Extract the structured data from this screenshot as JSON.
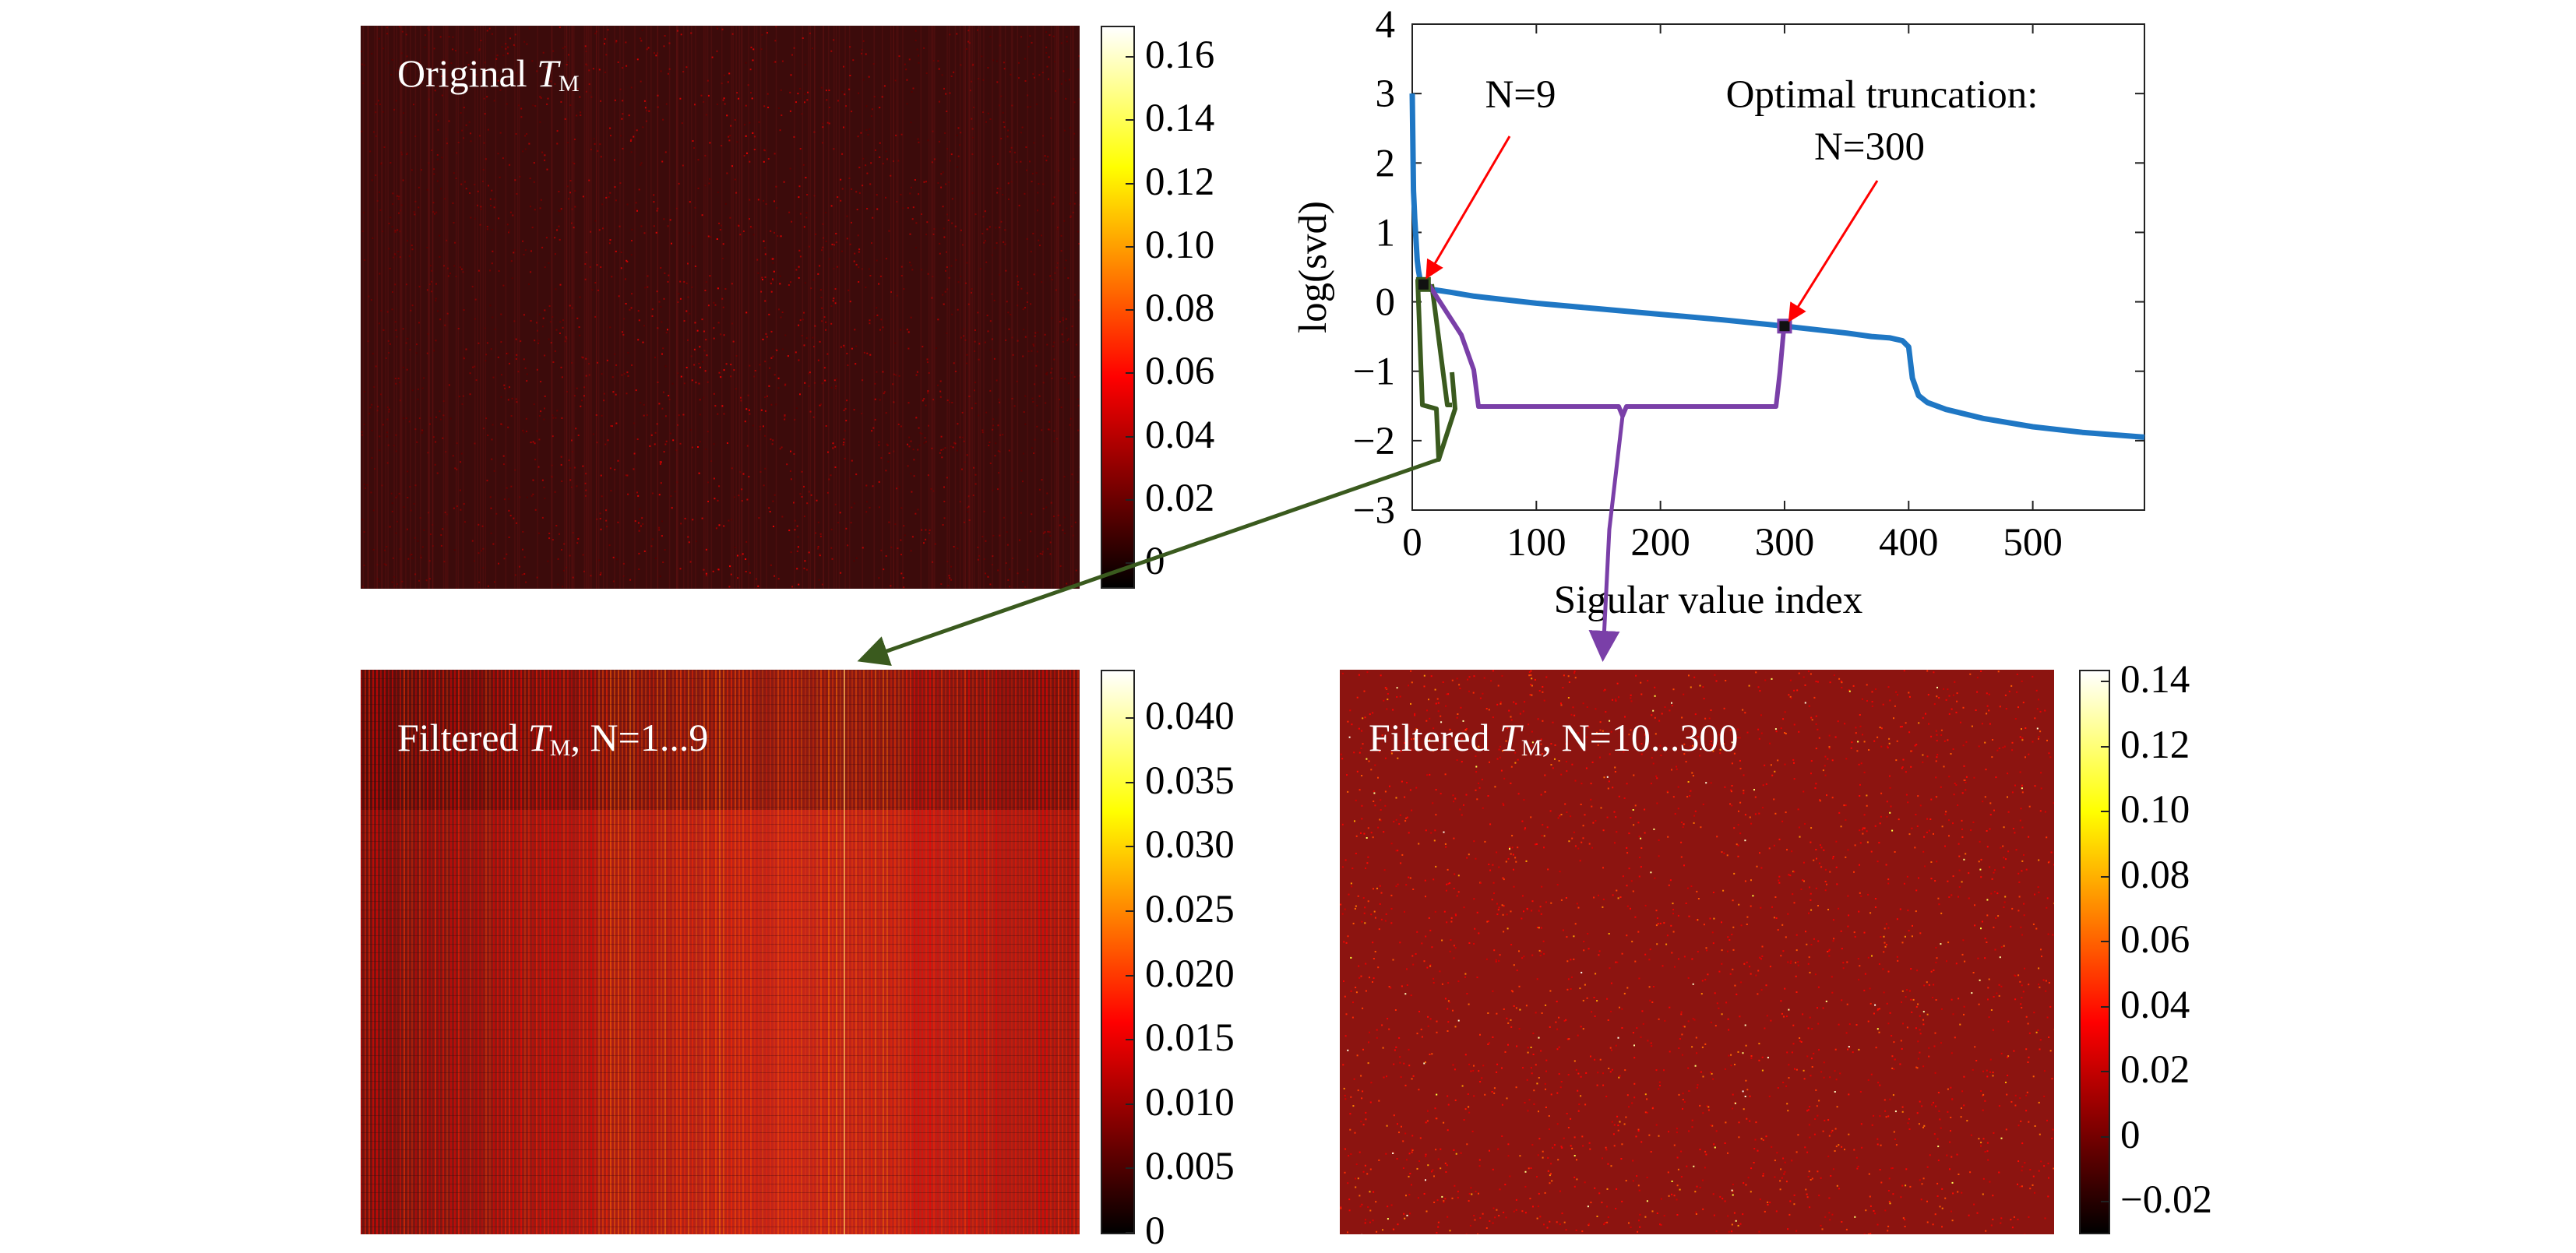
{
  "panels": {
    "original": {
      "title_prefix": "Original ",
      "title_italic": "T",
      "title_sub": "M",
      "title_suffix": "",
      "colorbar_ticks": [
        "0.16",
        "0.14",
        "0.12",
        "0.10",
        "0.08",
        "0.06",
        "0.04",
        "0.02",
        "0"
      ]
    },
    "filtered_low": {
      "title_prefix": "Filtered ",
      "title_italic": "T",
      "title_sub": "M",
      "title_suffix": ", N=1...9",
      "colorbar_ticks": [
        "0.040",
        "0.035",
        "0.030",
        "0.025",
        "0.020",
        "0.015",
        "0.010",
        "0.005",
        "0"
      ]
    },
    "filtered_high": {
      "title_prefix": "Filtered ",
      "title_italic": "T",
      "title_sub": "M",
      "title_suffix": ", N=10...300",
      "colorbar_ticks": [
        "0.14",
        "0.12",
        "0.10",
        "0.08",
        "0.06",
        "0.04",
        "0.02",
        "0",
        "−0.02"
      ]
    }
  },
  "chart_data": {
    "type": "line",
    "xlabel": "Sigular value index",
    "ylabel": "log(svd)",
    "xlim": [
      0,
      590
    ],
    "ylim": [
      -3,
      4
    ],
    "xticks": [
      0,
      100,
      200,
      300,
      400,
      500
    ],
    "xtick_labels": [
      "0",
      "100",
      "200",
      "300",
      "400",
      "500"
    ],
    "yticks": [
      4,
      3,
      2,
      1,
      0,
      -1,
      -2,
      -3
    ],
    "ytick_labels": [
      "4",
      "3",
      "2",
      "1",
      "0",
      "−1",
      "−2",
      "−3"
    ],
    "grid": false,
    "series": [
      {
        "color": "#1f77c4",
        "x": [
          0,
          1,
          2,
          3,
          4,
          5,
          6,
          7,
          8,
          9,
          15,
          30,
          50,
          100,
          150,
          200,
          250,
          300,
          350,
          370,
          385,
          395,
          400,
          403,
          408,
          415,
          430,
          460,
          500,
          540,
          590
        ],
        "y": [
          3.0,
          1.6,
          1.2,
          0.9,
          0.6,
          0.45,
          0.35,
          0.3,
          0.28,
          0.25,
          0.18,
          0.14,
          0.08,
          -0.02,
          -0.1,
          -0.18,
          -0.26,
          -0.35,
          -0.45,
          -0.5,
          -0.52,
          -0.56,
          -0.65,
          -1.1,
          -1.35,
          -1.45,
          -1.55,
          -1.68,
          -1.8,
          -1.88,
          -1.95
        ]
      }
    ],
    "annotations": [
      {
        "text": "N=9",
        "x": 9,
        "y": 0.25,
        "arrow_color": "#ff0000"
      },
      {
        "text_line1": "Optimal truncation:",
        "text_line2": "N=300",
        "x": 300,
        "y": -0.35,
        "arrow_color": "#ff0000"
      }
    ],
    "colors": {
      "curve": "#1f77c4",
      "annotation_arrow": "#ff0000",
      "bracket_low": "#3a5a1e",
      "bracket_high": "#7a3fa8"
    }
  }
}
